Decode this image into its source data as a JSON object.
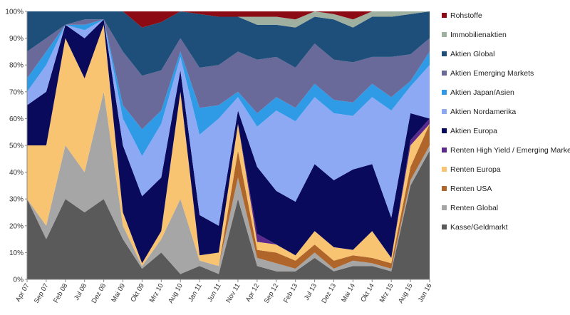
{
  "chart_data": {
    "type": "area",
    "stacking": "percent",
    "title": "",
    "xlabel": "",
    "ylabel": "",
    "ylim": [
      0,
      100
    ],
    "y_ticks": [
      "0%",
      "10%",
      "20%",
      "30%",
      "40%",
      "50%",
      "60%",
      "70%",
      "80%",
      "90%",
      "100%"
    ],
    "x_tick_labels": [
      "Apr 07",
      "Sep 07",
      "Feb 08",
      "Jul 08",
      "Dez 08",
      "Mai 09",
      "Okt 09",
      "Mrz 10",
      "Aug 10",
      "Jan 11",
      "Jun 11",
      "Nov 11",
      "Apr 12",
      "Sep 12",
      "Feb 13",
      "Jul 13",
      "Dez 13",
      "Mai 14",
      "Okt 14",
      "Mrz 15",
      "Aug 15",
      "Jan 16"
    ],
    "legend_position": "right",
    "grid": false,
    "x": [
      "Apr 07",
      "Sep 07",
      "Feb 08",
      "Jul 08",
      "Dez 08",
      "Mai 09",
      "Okt 09",
      "Mrz 10",
      "Aug 10",
      "Jan 11",
      "Jun 11",
      "Nov 11",
      "Apr 12",
      "Sep 12",
      "Feb 13",
      "Jul 13",
      "Dez 13",
      "Mai 14",
      "Okt 14",
      "Mrz 15",
      "Aug 15",
      "Jan 16"
    ],
    "series": [
      {
        "name": "Kasse/Geldmarkt",
        "color": "#5a5a5a",
        "values": [
          30,
          15,
          30,
          25,
          30,
          15,
          4,
          10,
          2,
          5,
          2,
          30,
          5,
          3,
          3,
          8,
          3,
          5,
          5,
          3,
          35,
          48
        ]
      },
      {
        "name": "Renten Global",
        "color": "#a6a6a6",
        "values": [
          0,
          5,
          20,
          15,
          40,
          5,
          1,
          5,
          28,
          2,
          3,
          8,
          3,
          3,
          1,
          2,
          1,
          2,
          1,
          1,
          2,
          2
        ]
      },
      {
        "name": "Renten USA",
        "color": "#b0662a",
        "values": [
          0,
          0,
          0,
          0,
          0,
          0,
          0,
          0,
          0,
          0,
          0,
          10,
          3,
          4,
          3,
          3,
          3,
          2,
          2,
          2,
          5,
          8
        ]
      },
      {
        "name": "Renten Europa",
        "color": "#f8c471",
        "values": [
          20,
          30,
          40,
          35,
          25,
          5,
          1,
          3,
          40,
          2,
          5,
          10,
          3,
          3,
          2,
          5,
          5,
          2,
          10,
          2,
          8,
          0
        ]
      },
      {
        "name": "Renten High Yield / Emerging Markets",
        "color": "#5b2a8c",
        "values": [
          0,
          0,
          0,
          0,
          0,
          0,
          0,
          0,
          0,
          0,
          0,
          0,
          3,
          0,
          0,
          0,
          0,
          0,
          0,
          0,
          2,
          2
        ]
      },
      {
        "name": "Aktien Europa",
        "color": "#0a0a5c",
        "values": [
          15,
          20,
          5,
          15,
          2,
          25,
          25,
          20,
          8,
          15,
          10,
          5,
          25,
          20,
          20,
          25,
          25,
          30,
          25,
          15,
          10,
          0
        ]
      },
      {
        "name": "Aktien Nordamerika",
        "color": "#8ea9f4",
        "values": [
          5,
          10,
          0,
          3,
          0,
          10,
          15,
          20,
          5,
          30,
          40,
          5,
          15,
          30,
          30,
          25,
          25,
          20,
          25,
          40,
          10,
          20
        ]
      },
      {
        "name": "Aktien Japan/Asien",
        "color": "#2f9be6",
        "values": [
          5,
          5,
          0,
          2,
          0,
          5,
          10,
          5,
          2,
          10,
          5,
          2,
          5,
          5,
          5,
          5,
          5,
          5,
          5,
          5,
          2,
          5
        ]
      },
      {
        "name": "Aktien Emerging Markets",
        "color": "#6a6a9a",
        "values": [
          10,
          5,
          0,
          2,
          0,
          20,
          20,
          15,
          5,
          15,
          15,
          15,
          20,
          15,
          15,
          15,
          15,
          15,
          10,
          15,
          10,
          5
        ]
      },
      {
        "name": "Aktien Global",
        "color": "#1e4f7a",
        "values": [
          15,
          10,
          5,
          3,
          3,
          15,
          18,
          18,
          10,
          20,
          18,
          13,
          13,
          12,
          15,
          10,
          15,
          13,
          15,
          15,
          15,
          10
        ]
      },
      {
        "name": "Immobilienaktien",
        "color": "#9fb0a0",
        "values": [
          0,
          0,
          0,
          0,
          0,
          0,
          0,
          0,
          0,
          0,
          0,
          0,
          3,
          3,
          3,
          2,
          2,
          3,
          2,
          2,
          1,
          0
        ]
      },
      {
        "name": "Rohstoffe",
        "color": "#8b0a14",
        "values": [
          0,
          0,
          0,
          0,
          0,
          0,
          6,
          4,
          0,
          1,
          2,
          2,
          2,
          2,
          3,
          0,
          1,
          3,
          0,
          0,
          0,
          0
        ]
      }
    ]
  }
}
